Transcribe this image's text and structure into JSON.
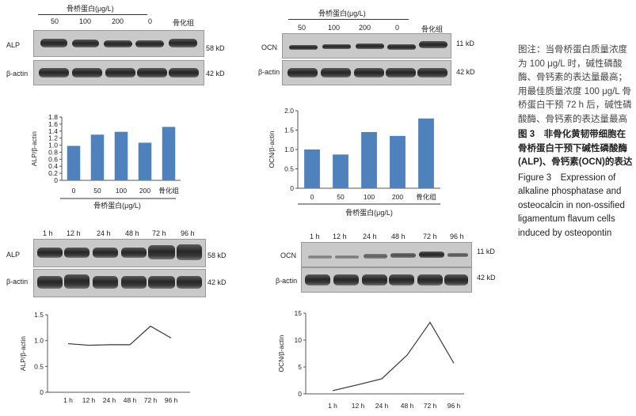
{
  "panel_a": {
    "group_label": "骨桥蛋白(μg/L)",
    "lanes": [
      "50",
      "100",
      "200",
      "0",
      "骨化组"
    ],
    "rows": [
      {
        "label": "ALP",
        "size": "58 kD"
      },
      {
        "label": "β-actin",
        "size": "42 kD"
      }
    ]
  },
  "panel_b": {
    "group_label": "骨桥蛋白(μg/L)",
    "lanes": [
      "50",
      "100",
      "200",
      "0",
      "骨化组"
    ],
    "rows": [
      {
        "label": "OCN",
        "size": "11 kD"
      },
      {
        "label": "β-actin",
        "size": "42 kD"
      }
    ]
  },
  "panel_c": {
    "lanes": [
      "1 h",
      "12 h",
      "24 h",
      "48 h",
      "72 h",
      "96 h"
    ],
    "rows": [
      {
        "label": "ALP",
        "size": "58 kD"
      },
      {
        "label": "β-actin",
        "size": "42 kD"
      }
    ]
  },
  "panel_d": {
    "lanes": [
      "1 h",
      "12 h",
      "24 h",
      "48 h",
      "72 h",
      "96 h"
    ],
    "rows": [
      {
        "label": "OCN",
        "size": "11 kD"
      },
      {
        "label": "β-actin",
        "size": "42 kD"
      }
    ]
  },
  "caption": {
    "note": "图注：当骨桥蛋白质量浓度为 100 μg/L 时，碱性磷酸酶、骨钙素的表达量最高；用最佳质量浓度 100 μg/L 骨桥蛋白干预 72 h 后，碱性磷酸酶、骨钙素的表达量最高",
    "title_cn": "图 3　非骨化黄韧带细胞在骨桥蛋白干预下碱性磷酸酶(ALP)、骨钙素(OCN)的表达",
    "title_en": "Figure 3　Expression of alkaline phosphatase and osteocalcin in non-ossified ligamentum flavum cells induced by osteopontin"
  },
  "chart_data": [
    {
      "type": "bar",
      "ylabel": "ALP/β-actin",
      "xlabel": "骨桥蛋白(μg/L)",
      "categories": [
        "0",
        "50",
        "100",
        "200",
        "骨化组"
      ],
      "values": [
        0.98,
        1.3,
        1.38,
        1.07,
        1.52
      ],
      "ylim": [
        0,
        1.8
      ],
      "yticks": [
        "0",
        "0.2",
        "0.4",
        "0.6",
        "0.8",
        "1.0",
        "1.2",
        "1.4",
        "1.6",
        "1.8"
      ],
      "color": "#4f81bd"
    },
    {
      "type": "bar",
      "ylabel": "OCN/β-actin",
      "xlabel": "骨桥蛋白(μg/L)",
      "categories": [
        "0",
        "50",
        "100",
        "200",
        "骨化组"
      ],
      "values": [
        1.0,
        0.87,
        1.45,
        1.35,
        1.8
      ],
      "ylim": [
        0,
        2.0
      ],
      "yticks": [
        "0",
        "0.5",
        "1.0",
        "1.5",
        "2.0"
      ],
      "color": "#4f81bd"
    },
    {
      "type": "line",
      "ylabel": "ALP/β-actin",
      "categories": [
        "1 h",
        "12 h",
        "24 h",
        "48 h",
        "72 h",
        "96 h"
      ],
      "values": [
        0.94,
        0.91,
        0.92,
        0.92,
        1.28,
        1.05
      ],
      "ylim": [
        0,
        1.5
      ],
      "yticks": [
        "0",
        "0.5",
        "1.0",
        "1.5"
      ],
      "color": "#333333"
    },
    {
      "type": "line",
      "ylabel": "OCN/β-actin",
      "categories": [
        "1 h",
        "12 h",
        "24 h",
        "48 h",
        "72 h",
        "96 h"
      ],
      "values": [
        0.6,
        1.7,
        2.8,
        7.2,
        13.3,
        5.7
      ],
      "ylim": [
        0,
        15
      ],
      "yticks": [
        "0",
        "5",
        "10",
        "15"
      ],
      "color": "#333333"
    }
  ]
}
